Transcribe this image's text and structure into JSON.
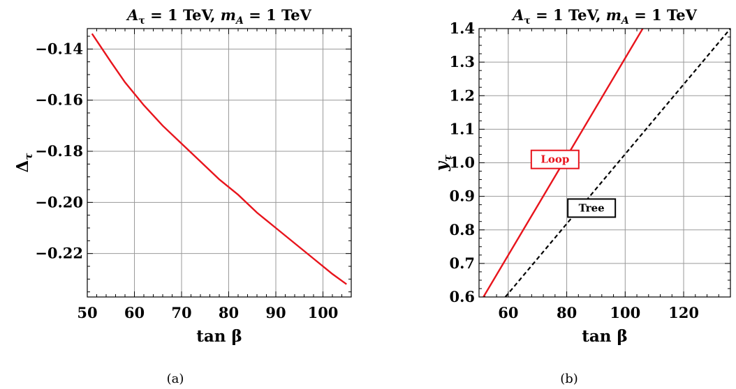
{
  "chart_data": [
    {
      "id": "a",
      "type": "line",
      "title_parts": [
        "A",
        "τ",
        " = 1 TeV,  ",
        "m",
        "A",
        " = 1 TeV"
      ],
      "xlabel": "tan β",
      "ylabel": "Δτ",
      "ylabel_parts": [
        "Δ",
        "τ"
      ],
      "caption": "(a)",
      "xlim": [
        50,
        106
      ],
      "ylim": [
        -0.237,
        -0.132
      ],
      "xticks": [
        50,
        60,
        70,
        80,
        90,
        100
      ],
      "xtick_labels": [
        "50",
        "60",
        "70",
        "80",
        "90",
        "100"
      ],
      "yticks": [
        -0.14,
        -0.16,
        -0.18,
        -0.2,
        -0.22
      ],
      "ytick_labels": [
        "−0.14",
        "−0.16",
        "−0.18",
        "−0.20",
        "−0.22"
      ],
      "xgrid": [
        60,
        70,
        80,
        90,
        100
      ],
      "ygrid": [
        -0.14,
        -0.16,
        -0.18,
        -0.2,
        -0.22
      ],
      "grid": true,
      "series": [
        {
          "color": "#e8141c",
          "dash": "none",
          "x": [
            51,
            55,
            58,
            62,
            66,
            70,
            74,
            78,
            82,
            86,
            90,
            94,
            98,
            102,
            105
          ],
          "y": [
            -0.134,
            -0.145,
            -0.153,
            -0.162,
            -0.17,
            -0.177,
            -0.184,
            -0.191,
            -0.197,
            -0.204,
            -0.21,
            -0.216,
            -0.222,
            -0.228,
            -0.232
          ]
        }
      ]
    },
    {
      "id": "b",
      "type": "line",
      "title_parts": [
        "A",
        "τ",
        " = 1 TeV,  ",
        "m",
        "A",
        " = 1 TeV"
      ],
      "xlabel": "tan β",
      "ylabel": "yτ",
      "ylabel_parts": [
        "y",
        "τ"
      ],
      "caption": "(b)",
      "xlim": [
        50,
        136
      ],
      "ylim": [
        0.6,
        1.4
      ],
      "xticks": [
        60,
        80,
        100,
        120
      ],
      "xtick_labels": [
        "60",
        "80",
        "100",
        "120"
      ],
      "yticks": [
        0.6,
        0.7,
        0.8,
        0.9,
        1.0,
        1.1,
        1.2,
        1.3,
        1.4
      ],
      "ytick_labels": [
        "0.6",
        "0.7",
        "0.8",
        "0.9",
        "1.0",
        "1.1",
        "1.2",
        "1.3",
        "1.4"
      ],
      "xgrid": [
        60,
        80,
        100,
        120
      ],
      "ygrid": [
        0.7,
        0.8,
        0.9,
        1.0,
        1.1,
        1.2,
        1.3
      ],
      "grid": true,
      "series": [
        {
          "name": "Loop",
          "color": "#e8141c",
          "dash": "none",
          "x": [
            51.5,
            106
          ],
          "y": [
            0.6,
            1.4
          ]
        },
        {
          "name": "Tree",
          "color": "#000000",
          "dash": "6,4",
          "x": [
            59,
            136
          ],
          "y": [
            0.6,
            1.4
          ]
        }
      ],
      "annotations": [
        {
          "text": "Loop",
          "x": 76,
          "y": 1.01,
          "color": "#e8141c"
        },
        {
          "text": "Tree",
          "x": 88.5,
          "y": 0.865,
          "color": "#000000"
        }
      ]
    }
  ]
}
